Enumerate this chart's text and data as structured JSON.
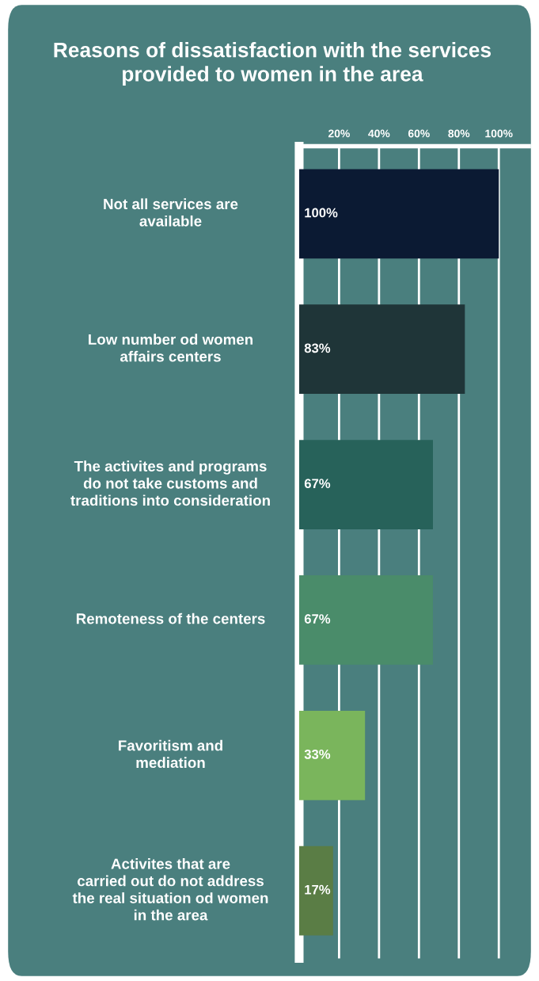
{
  "chart_data": {
    "type": "bar",
    "orientation": "horizontal",
    "title": "Reasons of dissatisfaction with the services\nprovided to women in the area",
    "categories": [
      "Not all services are\navailable",
      "Low number od women\naffairs centers",
      "The activites and programs\ndo not take customs and\ntraditions into consideration",
      "Remoteness of the centers",
      "Favoritism and\nmediation",
      "Activites that are\ncarried out do not address\nthe real situation od women\nin the area"
    ],
    "values": [
      100,
      83,
      67,
      67,
      33,
      17
    ],
    "value_labels": [
      "100%",
      "83%",
      "67%",
      "67%",
      "33%",
      "17%"
    ],
    "colors": [
      "#0b1a33",
      "#1f3538",
      "#27625a",
      "#4a8c6a",
      "#7ab55c",
      "#5a7d45"
    ],
    "xlim": [
      0,
      115
    ],
    "xticks": [
      {
        "value": 20,
        "label": "20%"
      },
      {
        "value": 40,
        "label": "40%"
      },
      {
        "value": 60,
        "label": "60%"
      },
      {
        "value": 80,
        "label": "80%"
      },
      {
        "value": 100,
        "label": "100%"
      }
    ],
    "grid": "x"
  }
}
